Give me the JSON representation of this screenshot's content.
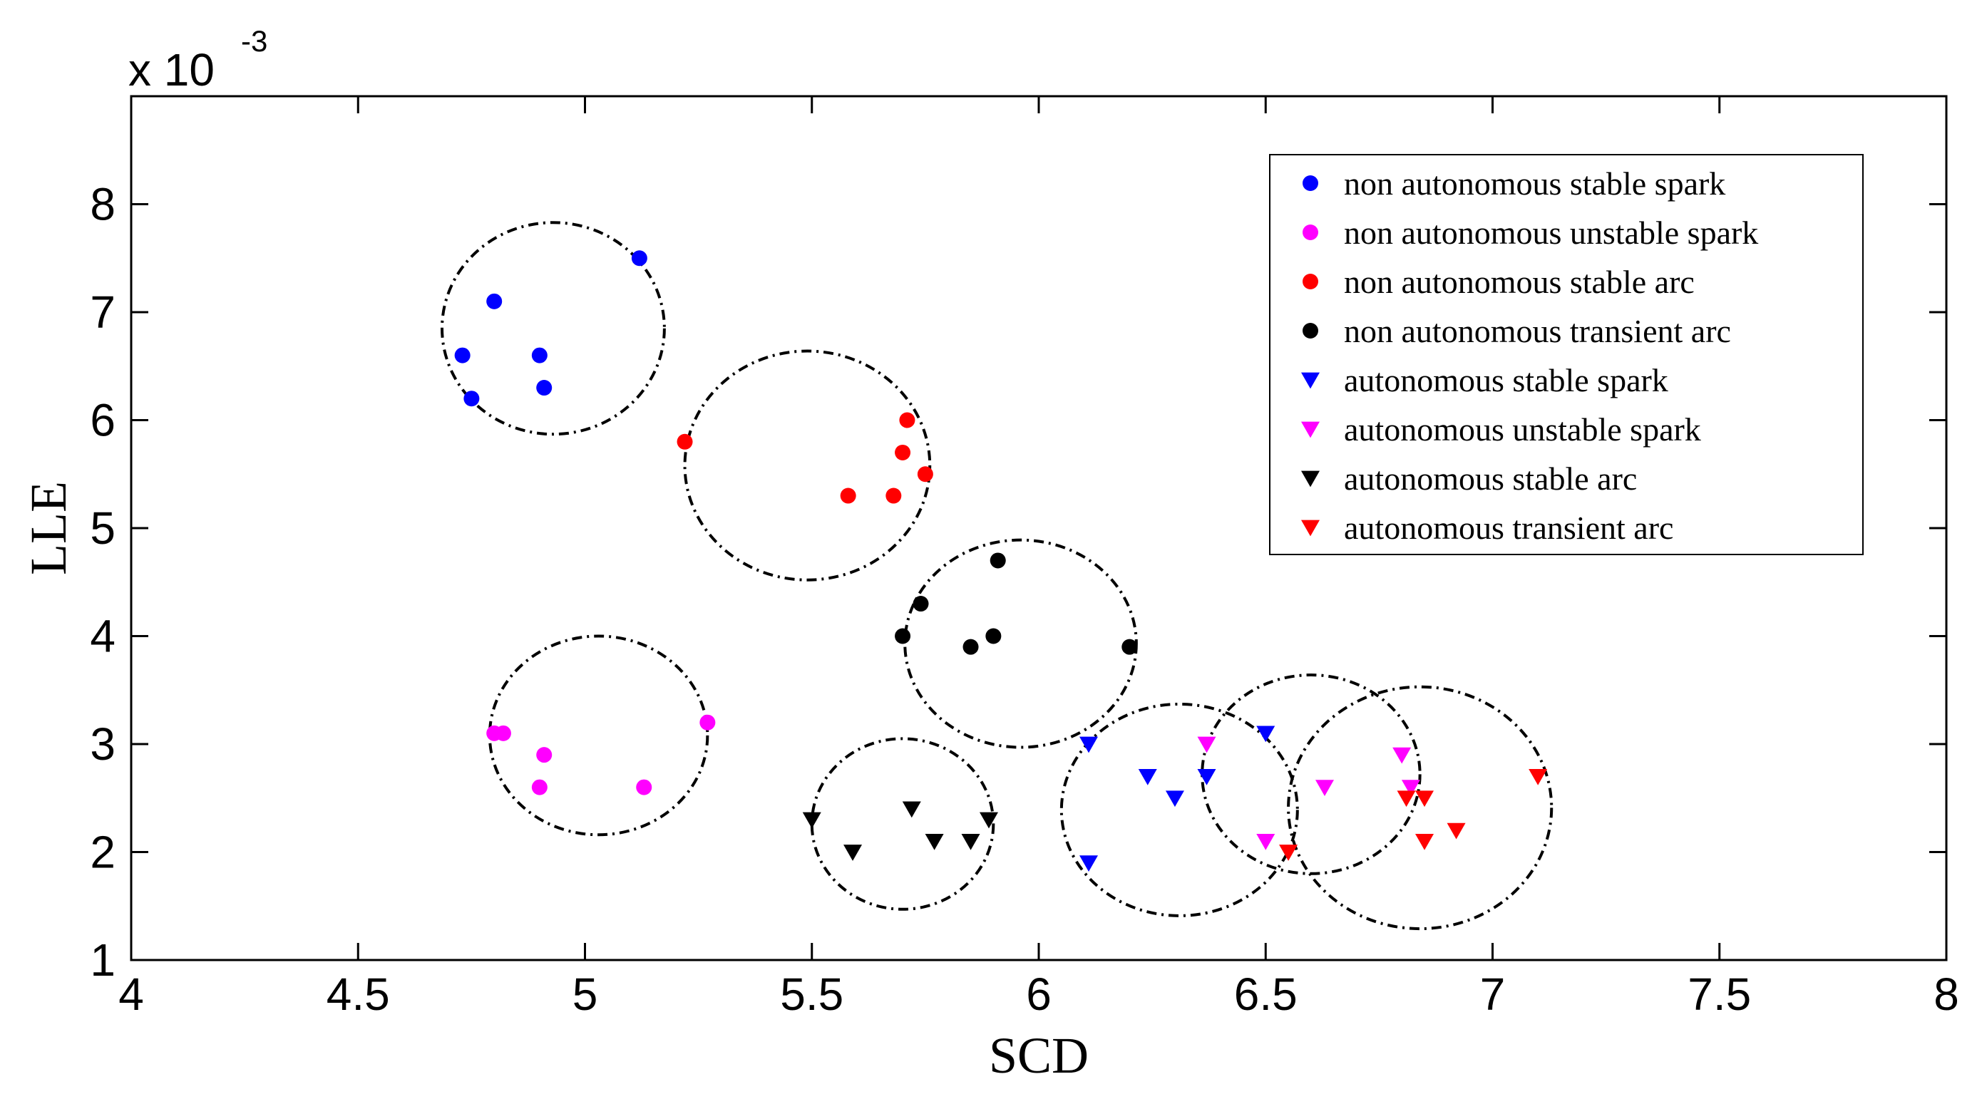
{
  "chart_data": {
    "type": "scatter",
    "title": "",
    "xlabel": "SCD",
    "ylabel": "LLE",
    "y_multiplier_prefix": "x 10",
    "y_multiplier_exponent": "-3",
    "xlim": [
      4,
      8
    ],
    "ylim": [
      1,
      9
    ],
    "xticks": [
      "4",
      "4.5",
      "5",
      "5.5",
      "6",
      "6.5",
      "7",
      "7.5",
      "8"
    ],
    "yticks": [
      "1",
      "2",
      "3",
      "4",
      "5",
      "6",
      "7",
      "8"
    ],
    "legend_position": "top-right",
    "series": [
      {
        "name": "non autonomous stable spark",
        "marker": "circle",
        "color": "#0000ff",
        "points": [
          [
            4.73,
            6.6
          ],
          [
            4.75,
            6.2
          ],
          [
            4.8,
            7.1
          ],
          [
            4.9,
            6.6
          ],
          [
            4.91,
            6.3
          ],
          [
            5.12,
            7.5
          ]
        ]
      },
      {
        "name": "non autonomous unstable spark",
        "marker": "circle",
        "color": "#ff00ff",
        "points": [
          [
            4.8,
            3.1
          ],
          [
            4.82,
            3.1
          ],
          [
            4.9,
            2.6
          ],
          [
            4.91,
            2.9
          ],
          [
            5.13,
            2.6
          ],
          [
            5.27,
            3.2
          ]
        ]
      },
      {
        "name": "non autonomous stable arc",
        "marker": "circle",
        "color": "#ff0000",
        "points": [
          [
            5.22,
            5.8
          ],
          [
            5.58,
            5.3
          ],
          [
            5.68,
            5.3
          ],
          [
            5.7,
            5.7
          ],
          [
            5.71,
            6.0
          ],
          [
            5.75,
            5.5
          ]
        ]
      },
      {
        "name": "non autonomous transient arc",
        "marker": "circle",
        "color": "#000000",
        "points": [
          [
            5.7,
            4.0
          ],
          [
            5.74,
            4.3
          ],
          [
            5.85,
            3.9
          ],
          [
            5.9,
            4.0
          ],
          [
            5.91,
            4.7
          ],
          [
            6.2,
            3.9
          ]
        ]
      },
      {
        "name": "autonomous stable spark",
        "marker": "triangle-down",
        "color": "#0000ff",
        "points": [
          [
            6.11,
            3.0
          ],
          [
            6.11,
            1.9
          ],
          [
            6.24,
            2.7
          ],
          [
            6.3,
            2.5
          ],
          [
            6.37,
            2.7
          ],
          [
            6.5,
            3.1
          ]
        ]
      },
      {
        "name": "autonomous unstable spark",
        "marker": "triangle-down",
        "color": "#ff00ff",
        "points": [
          [
            6.37,
            3.0
          ],
          [
            6.5,
            2.1
          ],
          [
            6.63,
            2.6
          ],
          [
            6.8,
            2.9
          ],
          [
            6.82,
            2.6
          ]
        ]
      },
      {
        "name": "autonomous stable arc",
        "marker": "triangle-down",
        "color": "#000000",
        "points": [
          [
            5.5,
            2.3
          ],
          [
            5.59,
            2.0
          ],
          [
            5.72,
            2.4
          ],
          [
            5.77,
            2.1
          ],
          [
            5.85,
            2.1
          ],
          [
            5.89,
            2.3
          ]
        ]
      },
      {
        "name": "autonomous transient arc",
        "marker": "triangle-down",
        "color": "#ff0000",
        "points": [
          [
            6.55,
            2.0
          ],
          [
            6.81,
            2.5
          ],
          [
            6.85,
            2.5
          ],
          [
            6.85,
            2.1
          ],
          [
            6.92,
            2.2
          ],
          [
            7.1,
            2.7
          ]
        ]
      }
    ],
    "cluster_ellipses": [
      {
        "cx": 4.93,
        "cy": 6.85,
        "rx": 0.245,
        "ry": 0.98
      },
      {
        "cx": 5.49,
        "cy": 5.58,
        "rx": 0.27,
        "ry": 1.06
      },
      {
        "cx": 5.03,
        "cy": 3.08,
        "rx": 0.24,
        "ry": 0.92
      },
      {
        "cx": 5.96,
        "cy": 3.93,
        "rx": 0.255,
        "ry": 0.96
      },
      {
        "cx": 5.7,
        "cy": 2.26,
        "rx": 0.2,
        "ry": 0.79
      },
      {
        "cx": 6.31,
        "cy": 2.39,
        "rx": 0.26,
        "ry": 0.98
      },
      {
        "cx": 6.6,
        "cy": 2.72,
        "rx": 0.24,
        "ry": 0.92
      },
      {
        "cx": 6.84,
        "cy": 2.41,
        "rx": 0.29,
        "ry": 1.12
      }
    ]
  }
}
